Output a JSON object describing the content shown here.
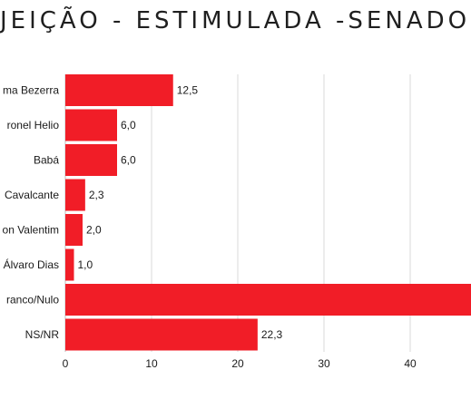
{
  "chart_data": {
    "type": "bar",
    "orientation": "horizontal",
    "title": "JEIÇÃO - ESTIMULADA -SENADOR",
    "categories": [
      "ma Bezerra",
      "ronel Helio",
      "Babá",
      "Cavalcante",
      "on Valentim",
      "Álvaro Dias",
      "ranco/Nulo",
      "NS/NR"
    ],
    "values": [
      12.5,
      6.0,
      6.0,
      2.3,
      2.0,
      1.0,
      47.5,
      22.3
    ],
    "value_labels": [
      "12,5",
      "6,0",
      "6,0",
      "2,3",
      "2,0",
      "1,0",
      "",
      "22,3"
    ],
    "x_ticks": [
      0,
      10,
      20,
      30,
      40
    ],
    "x_tick_labels": [
      "0",
      "10",
      "20",
      "30",
      "40"
    ],
    "xlim": [
      0,
      47.5
    ],
    "grid": true,
    "bar_color": "#f11d27",
    "grid_color": "#d9d9d9"
  }
}
